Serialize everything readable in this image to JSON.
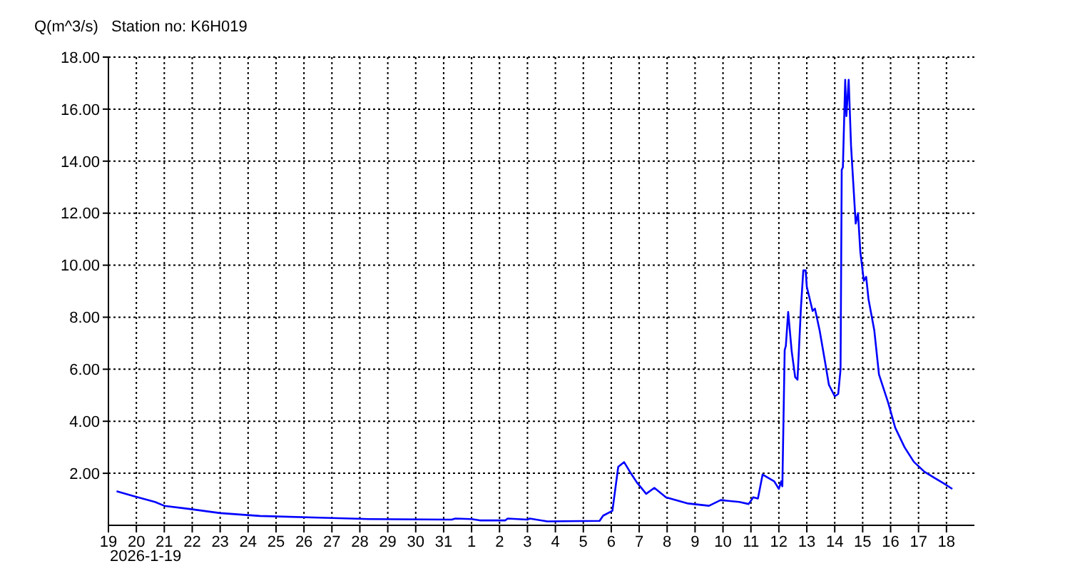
{
  "chart_data": {
    "type": "line",
    "title": "Station no: K6H019",
    "ylabel": "Q(m^3/s)",
    "annotations": [
      "2026-1-19"
    ],
    "x": [
      "2025-12-19T07:00",
      "2025-12-19T22:00",
      "2025-12-20T16:00",
      "2025-12-21T00:00",
      "2025-12-21T23:00",
      "2025-12-23T00:00",
      "2025-12-24T10:00",
      "2025-12-27T00:00",
      "2025-12-28T08:00",
      "2025-12-31T07:00",
      "2025-12-31T10:00",
      "2026-01-01T00:00",
      "2026-01-01T07:00",
      "2026-01-02T05:00",
      "2026-01-02T07:00",
      "2026-01-03T00:00",
      "2026-01-03T02:00",
      "2026-01-03T17:00",
      "2026-01-05T14:00",
      "2026-01-05T17:00",
      "2026-01-06T01:00",
      "2026-01-06T06:00",
      "2026-01-06T11:00",
      "2026-01-06T16:00",
      "2026-01-06T22:00",
      "2026-01-07T06:00",
      "2026-01-07T13:00",
      "2026-01-07T23:00",
      "2026-01-08T18:00",
      "2026-01-09T12:00",
      "2026-01-09T22:00",
      "2026-01-10T14:00",
      "2026-01-10T22:00",
      "2026-01-11T02:00",
      "2026-01-11T06:00",
      "2026-01-11T10:00",
      "2026-01-11T20:00",
      "2026-01-12T00:00",
      "2026-01-12T02:00",
      "2026-01-12T03:00",
      "2026-01-12T05:00",
      "2026-01-12T06:00",
      "2026-01-12T08:00",
      "2026-01-12T11:00",
      "2026-01-12T14:00",
      "2026-01-12T16:00",
      "2026-01-12T19:00",
      "2026-01-12T21:00",
      "2026-01-12T23:00",
      "2026-01-13T00:00",
      "2026-01-13T05:00",
      "2026-01-13T07:00",
      "2026-01-13T11:00",
      "2026-01-13T16:00",
      "2026-01-13T19:00",
      "2026-01-14T00:00",
      "2026-01-14T03:00",
      "2026-01-14T05:00",
      "2026-01-14T06:00",
      "2026-01-14T07:00",
      "2026-01-14T09:00",
      "2026-01-14T10:00",
      "2026-01-14T12:00",
      "2026-01-14T14:00",
      "2026-01-14T16:00",
      "2026-01-14T18:00",
      "2026-01-14T20:00",
      "2026-01-14T22:00",
      "2026-01-15T01:00",
      "2026-01-15T03:00",
      "2026-01-15T05:00",
      "2026-01-15T10:00",
      "2026-01-15T14:00",
      "2026-01-15T22:00",
      "2026-01-16T04:00",
      "2026-01-16T12:00",
      "2026-01-16T20:00",
      "2026-01-17T05:00",
      "2026-01-17T13:00",
      "2026-01-17T22:00",
      "2026-01-18T05:00"
    ],
    "series": [
      {
        "color": "#0000ff",
        "values": [
          1.31,
          1.12,
          0.9,
          0.75,
          0.62,
          0.47,
          0.36,
          0.28,
          0.24,
          0.22,
          0.26,
          0.24,
          0.19,
          0.19,
          0.26,
          0.22,
          0.26,
          0.15,
          0.17,
          0.37,
          0.56,
          2.25,
          2.43,
          2.06,
          1.65,
          1.21,
          1.44,
          1.08,
          0.84,
          0.75,
          0.97,
          0.9,
          0.82,
          1.08,
          1.03,
          1.95,
          1.69,
          1.4,
          1.69,
          1.5,
          6.74,
          6.9,
          8.2,
          6.7,
          5.7,
          5.6,
          8.4,
          9.8,
          9.8,
          9.17,
          8.24,
          8.33,
          7.5,
          6.2,
          5.4,
          4.96,
          5.05,
          6.0,
          13.67,
          13.76,
          17.13,
          15.73,
          17.13,
          14.6,
          13.1,
          11.6,
          12.0,
          10.5,
          9.4,
          9.55,
          8.7,
          7.49,
          5.8,
          4.7,
          3.75,
          3.0,
          2.44,
          2.06,
          1.84,
          1.6,
          1.4
        ]
      }
    ],
    "xlim": [
      "2025-12-19",
      "2026-01-19"
    ],
    "xticks": [
      {
        "value": "2025-12-19",
        "label": "19"
      },
      {
        "value": "2025-12-20",
        "label": "20"
      },
      {
        "value": "2025-12-21",
        "label": "21"
      },
      {
        "value": "2025-12-22",
        "label": "22"
      },
      {
        "value": "2025-12-23",
        "label": "23"
      },
      {
        "value": "2025-12-24",
        "label": "24"
      },
      {
        "value": "2025-12-25",
        "label": "25"
      },
      {
        "value": "2025-12-26",
        "label": "26"
      },
      {
        "value": "2025-12-27",
        "label": "27"
      },
      {
        "value": "2025-12-28",
        "label": "28"
      },
      {
        "value": "2025-12-29",
        "label": "29"
      },
      {
        "value": "2025-12-30",
        "label": "30"
      },
      {
        "value": "2025-12-31",
        "label": "31"
      },
      {
        "value": "2026-01-01",
        "label": "1"
      },
      {
        "value": "2026-01-02",
        "label": "2"
      },
      {
        "value": "2026-01-03",
        "label": "3"
      },
      {
        "value": "2026-01-04",
        "label": "4"
      },
      {
        "value": "2026-01-05",
        "label": "5"
      },
      {
        "value": "2026-01-06",
        "label": "6"
      },
      {
        "value": "2026-01-07",
        "label": "7"
      },
      {
        "value": "2026-01-08",
        "label": "8"
      },
      {
        "value": "2026-01-09",
        "label": "9"
      },
      {
        "value": "2026-01-10",
        "label": "10"
      },
      {
        "value": "2026-01-11",
        "label": "11"
      },
      {
        "value": "2026-01-12",
        "label": "12"
      },
      {
        "value": "2026-01-13",
        "label": "13"
      },
      {
        "value": "2026-01-14",
        "label": "14"
      },
      {
        "value": "2026-01-15",
        "label": "15"
      },
      {
        "value": "2026-01-16",
        "label": "16"
      },
      {
        "value": "2026-01-17",
        "label": "17"
      },
      {
        "value": "2026-01-18",
        "label": "18"
      }
    ],
    "ylim": [
      0,
      18
    ],
    "yticks": [
      {
        "value": 2,
        "label": "2.00"
      },
      {
        "value": 4,
        "label": "4.00"
      },
      {
        "value": 6,
        "label": "6.00"
      },
      {
        "value": 8,
        "label": "8.00"
      },
      {
        "value": 10,
        "label": "10.00"
      },
      {
        "value": 12,
        "label": "12.00"
      },
      {
        "value": 14,
        "label": "14.00"
      },
      {
        "value": 16,
        "label": "16.00"
      },
      {
        "value": 18,
        "label": "18.00"
      }
    ],
    "grid": true,
    "legend": false,
    "marker": "none",
    "line_style": "solid"
  }
}
